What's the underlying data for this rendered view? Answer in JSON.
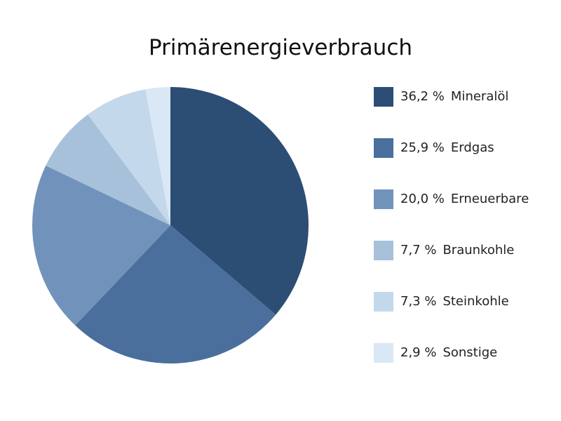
{
  "chart_data": {
    "type": "pie",
    "title": "Primärenergieverbrauch",
    "categories": [
      "Mineralöl",
      "Erdgas",
      "Erneuerbare",
      "Braunkohle",
      "Steinkohle",
      "Sonstige"
    ],
    "values": [
      36.2,
      25.9,
      20.0,
      7.7,
      7.3,
      2.9
    ],
    "value_labels": [
      "36,2 %",
      "25,9 %",
      "20,0 %",
      "7,7 %",
      "7,3 %",
      "2,9 %"
    ],
    "colors": [
      "#2c4e75",
      "#4a6f9c",
      "#7193bb",
      "#a8c1da",
      "#c3d8eb",
      "#d9e8f4"
    ],
    "legend": "right"
  }
}
